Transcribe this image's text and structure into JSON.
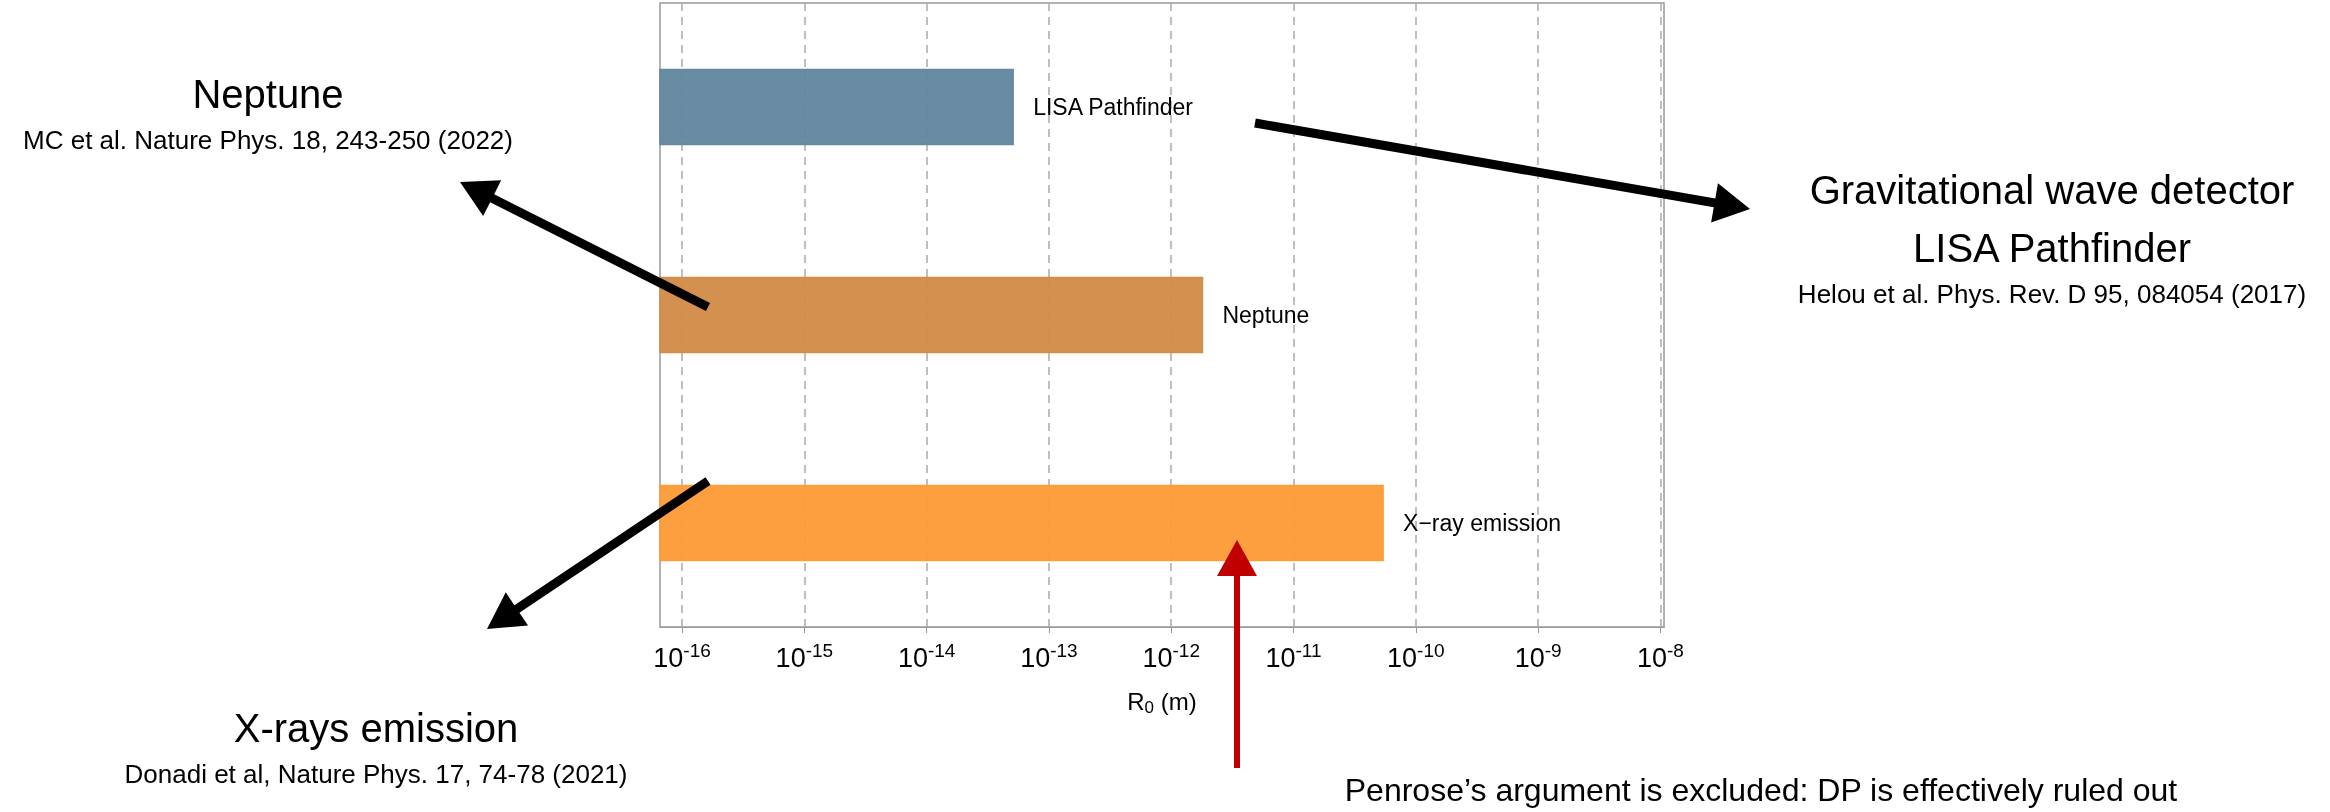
{
  "chart_data": {
    "type": "bar",
    "orientation": "horizontal",
    "categories": [
      "LISA Pathfinder",
      "Neptune",
      "X−ray emission"
    ],
    "colors": [
      "#62869e",
      "#d18a45",
      "#fd9a35"
    ],
    "values": [
      5.1e-14,
      1.8e-12,
      5.4e-11
    ],
    "log": "x",
    "xlim": [
      6.6e-17,
      1.07e-08
    ],
    "xticks": [
      {
        "value": 1e-16,
        "label": "10$^{-16}$"
      },
      {
        "value": 1e-15,
        "label": "10$^{-15}$"
      },
      {
        "value": 1e-14,
        "label": "10$^{-14}$"
      },
      {
        "value": 1e-13,
        "label": "10$^{-13}$"
      },
      {
        "value": 1e-12,
        "label": "10$^{-12}$"
      },
      {
        "value": 1e-11,
        "label": "10$^{-11}$"
      },
      {
        "value": 1e-10,
        "label": "10$^{-10}$"
      },
      {
        "value": 1e-09,
        "label": "10$^{-9}$"
      },
      {
        "value": 1e-08,
        "label": "10$^{-8}$"
      }
    ],
    "xlabel": "R$_{0}$ (m)",
    "grid": "x",
    "annotations": [
      "Neptune",
      "MC et al. Nature Phys. 18, 243-250 (2022)",
      "Gravitational wave detector",
      "LISA Pathfinder",
      "Helou et al. Phys. Rev. D 95, 084054 (2017)",
      "X-rays emission",
      "Donadi et al, Nature Phys. 17, 74-78 (2021)",
      "Penrose’s argument is excluded: DP is effectively ruled out"
    ]
  }
}
